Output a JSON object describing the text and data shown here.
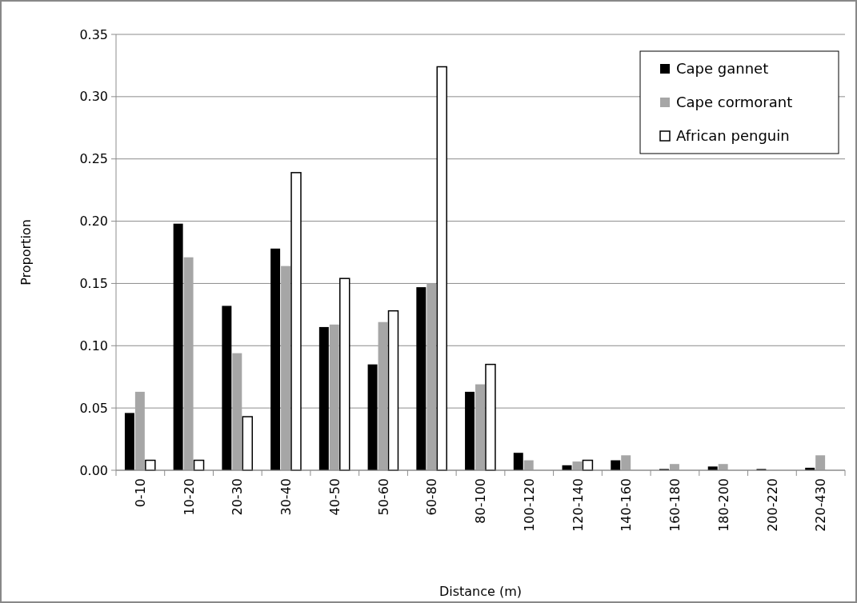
{
  "chart_data": {
    "type": "bar",
    "xlabel": "Distance (m)",
    "ylabel": "Proportion",
    "categories": [
      "0-10",
      "10-20",
      "20-30",
      "30-40",
      "40-50",
      "50-60",
      "60-80",
      "80-100",
      "100-120",
      "120-140",
      "140-160",
      "160-180",
      "180-200",
      "200-220",
      "220-430"
    ],
    "series": [
      {
        "name": "Cape gannet",
        "color": "#000000",
        "values": [
          0.046,
          0.198,
          0.132,
          0.178,
          0.115,
          0.085,
          0.147,
          0.063,
          0.014,
          0.004,
          0.008,
          0.001,
          0.003,
          0.001,
          0.002
        ]
      },
      {
        "name": "Cape cormorant",
        "color": "#a6a6a6",
        "values": [
          0.063,
          0.171,
          0.094,
          0.164,
          0.117,
          0.119,
          0.15,
          0.069,
          0.008,
          0.007,
          0.012,
          0.005,
          0.005,
          0,
          0.012
        ]
      },
      {
        "name": "African penguin",
        "color": "#ffffff",
        "values": [
          0.008,
          0.008,
          0.043,
          0.239,
          0.154,
          0.128,
          0.324,
          0.085,
          0,
          0.008,
          0,
          0,
          0,
          0,
          0
        ]
      }
    ],
    "ylim": [
      0,
      0.35
    ],
    "yticks": [
      {
        "value": 0,
        "label": "0.00"
      },
      {
        "value": 0.05,
        "label": "0.05"
      },
      {
        "value": 0.1,
        "label": "0.10"
      },
      {
        "value": 0.15,
        "label": "0.15"
      },
      {
        "value": 0.2,
        "label": "0.20"
      },
      {
        "value": 0.25,
        "label": "0.25"
      },
      {
        "value": 0.3,
        "label": "0.30"
      },
      {
        "value": 0.35,
        "label": "0.35"
      }
    ],
    "grid": "y",
    "legend": "top right"
  }
}
